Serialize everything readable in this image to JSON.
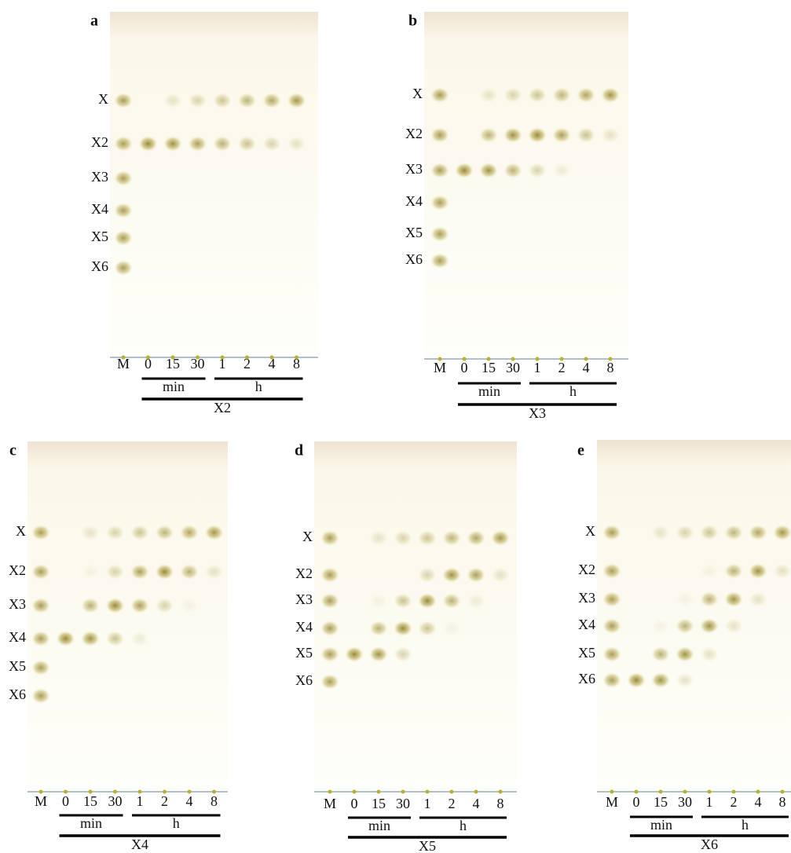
{
  "panels": [
    {
      "letter": "a",
      "rows": [
        "X",
        "X2",
        "X3",
        "X4",
        "X5",
        "X6"
      ],
      "lanes": [
        "M",
        "0",
        "15",
        "30",
        "1",
        "2",
        "4",
        "8"
      ],
      "min": "min",
      "h": "h",
      "substrate": "X2"
    },
    {
      "letter": "b",
      "rows": [
        "X",
        "X2",
        "X3",
        "X4",
        "X5",
        "X6"
      ],
      "lanes": [
        "M",
        "0",
        "15",
        "30",
        "1",
        "2",
        "4",
        "8"
      ],
      "min": "min",
      "h": "h",
      "substrate": "X3"
    },
    {
      "letter": "c",
      "rows": [
        "X",
        "X2",
        "X3",
        "X4",
        "X5",
        "X6"
      ],
      "lanes": [
        "M",
        "0",
        "15",
        "30",
        "1",
        "2",
        "4",
        "8"
      ],
      "min": "min",
      "h": "h",
      "substrate": "X4"
    },
    {
      "letter": "d",
      "rows": [
        "X",
        "X2",
        "X3",
        "X4",
        "X5",
        "X6"
      ],
      "lanes": [
        "M",
        "0",
        "15",
        "30",
        "1",
        "2",
        "4",
        "8"
      ],
      "min": "min",
      "h": "h",
      "substrate": "X5"
    },
    {
      "letter": "e",
      "rows": [
        "X",
        "X2",
        "X3",
        "X4",
        "X5",
        "X6"
      ],
      "lanes": [
        "M",
        "0",
        "15",
        "30",
        "1",
        "2",
        "4",
        "8"
      ],
      "min": "min",
      "h": "h",
      "substrate": "X6"
    }
  ]
}
